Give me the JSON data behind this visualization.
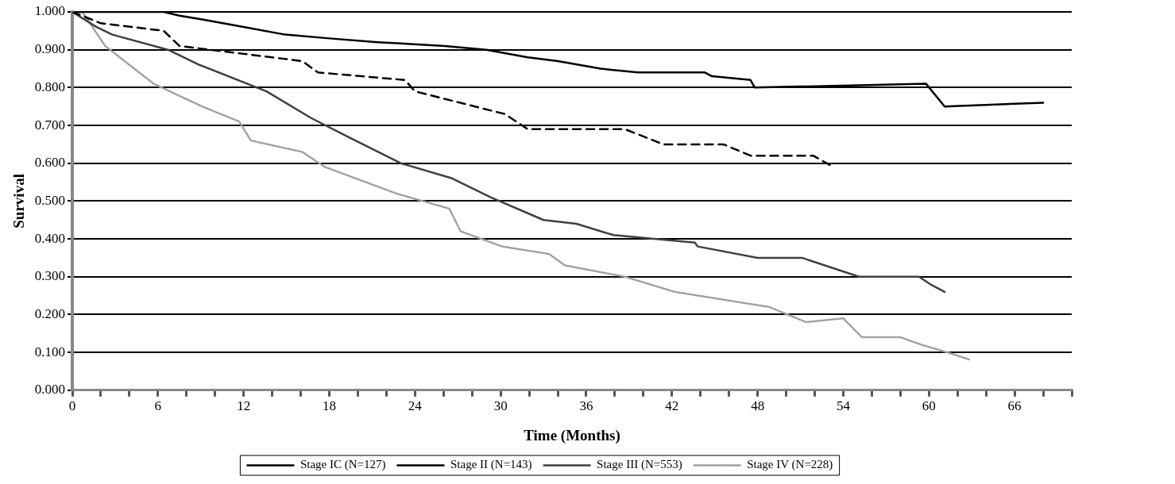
{
  "chart_data": {
    "type": "line",
    "xlabel": "Time (Months)",
    "ylabel": "Survival",
    "xlim": [
      0,
      70
    ],
    "ylim": [
      0,
      1
    ],
    "xticks": [
      0,
      {
        "value": 2,
        "label": null
      },
      {
        "value": 4,
        "label": null
      },
      6,
      {
        "value": 8,
        "label": null
      },
      {
        "value": 10,
        "label": null
      },
      12,
      {
        "value": 14,
        "label": null
      },
      {
        "value": 16,
        "label": null
      },
      18,
      {
        "value": 20,
        "label": null
      },
      {
        "value": 22,
        "label": null
      },
      24,
      {
        "value": 26,
        "label": null
      },
      {
        "value": 28,
        "label": null
      },
      30,
      {
        "value": 32,
        "label": null
      },
      {
        "value": 34,
        "label": null
      },
      36,
      {
        "value": 38,
        "label": null
      },
      {
        "value": 40,
        "label": null
      },
      42,
      {
        "value": 44,
        "label": null
      },
      {
        "value": 46,
        "label": null
      },
      48,
      {
        "value": 50,
        "label": null
      },
      {
        "value": 52,
        "label": null
      },
      54,
      {
        "value": 56,
        "label": null
      },
      {
        "value": 58,
        "label": null
      },
      60,
      {
        "value": 62,
        "label": null
      },
      {
        "value": 64,
        "label": null
      },
      66,
      {
        "value": 68,
        "label": null
      },
      {
        "value": 70,
        "label": null
      }
    ],
    "yticks": [
      {
        "value": 0,
        "label": "0.000"
      },
      {
        "value": 0.1,
        "label": "0.100"
      },
      {
        "value": 0.2,
        "label": "0.200"
      },
      {
        "value": 0.3,
        "label": "0.300"
      },
      {
        "value": 0.4,
        "label": "0.400"
      },
      {
        "value": 0.5,
        "label": "0.500"
      },
      {
        "value": 0.6,
        "label": "0.600"
      },
      {
        "value": 0.7,
        "label": "0.700"
      },
      {
        "value": 0.8,
        "label": "0.800"
      },
      {
        "value": 0.9,
        "label": "0.900"
      },
      {
        "value": 1,
        "label": "1.000"
      }
    ],
    "grid": "y",
    "legend": "bottom",
    "marker": "none",
    "series": [
      {
        "name": "Stage IC (N=127)",
        "color": "#000000",
        "line_style": "solid",
        "x": [
          0,
          6.4,
          7.5,
          9.1,
          12,
          14.9,
          18,
          21.4,
          26.1,
          29,
          31.9,
          34,
          37,
          39.6,
          44.3,
          44.8,
          47.5,
          47.8,
          59.8,
          61.1,
          68
        ],
        "values": [
          1,
          1,
          0.99,
          0.98,
          0.96,
          0.94,
          0.93,
          0.92,
          0.91,
          0.9,
          0.88,
          0.87,
          0.85,
          0.84,
          0.84,
          0.83,
          0.82,
          0.8,
          0.81,
          0.75,
          0.76
        ]
      },
      {
        "name": "Stage II (N=143)",
        "color": "#000000",
        "line_style": "dashed",
        "x": [
          0,
          2,
          6.4,
          7.5,
          16.1,
          17.2,
          23.3,
          24,
          30.3,
          31.9,
          38.7,
          41.4,
          45.6,
          47.5,
          51.9,
          53.3
        ],
        "values": [
          1,
          0.97,
          0.95,
          0.91,
          0.87,
          0.84,
          0.82,
          0.79,
          0.73,
          0.69,
          0.69,
          0.65,
          0.65,
          0.62,
          0.62,
          0.59
        ]
      },
      {
        "name": "Stage III (N=553)",
        "color": "#404040",
        "line_style": "solid",
        "x": [
          0,
          1.7,
          2.8,
          6.7,
          8.9,
          13.6,
          16.7,
          19.3,
          23,
          26.6,
          29.3,
          33,
          35.3,
          37.9,
          43.6,
          43.8,
          48,
          51.1,
          55.1,
          59.3,
          60.1,
          61.1
        ],
        "values": [
          1,
          0.96,
          0.94,
          0.9,
          0.86,
          0.79,
          0.72,
          0.67,
          0.6,
          0.56,
          0.51,
          0.45,
          0.44,
          0.41,
          0.39,
          0.38,
          0.35,
          0.35,
          0.3,
          0.3,
          0.28,
          0.26
        ]
      },
      {
        "name": "Stage IV (N=228)",
        "color": "#a0a0a0",
        "line_style": "dotted",
        "x": [
          0,
          0.7,
          2.3,
          5.7,
          9.1,
          11.7,
          12.5,
          16.1,
          17.7,
          22.7,
          26.4,
          27.2,
          30.1,
          33.4,
          34.5,
          38.7,
          42.2,
          48.8,
          51.4,
          54,
          55.3,
          58,
          59.5,
          61.3,
          62.9
        ],
        "values": [
          1,
          1,
          0.91,
          0.81,
          0.75,
          0.71,
          0.66,
          0.63,
          0.59,
          0.52,
          0.48,
          0.42,
          0.38,
          0.36,
          0.33,
          0.3,
          0.26,
          0.22,
          0.18,
          0.19,
          0.14,
          0.14,
          0.12,
          0.1,
          0.08
        ]
      }
    ]
  }
}
